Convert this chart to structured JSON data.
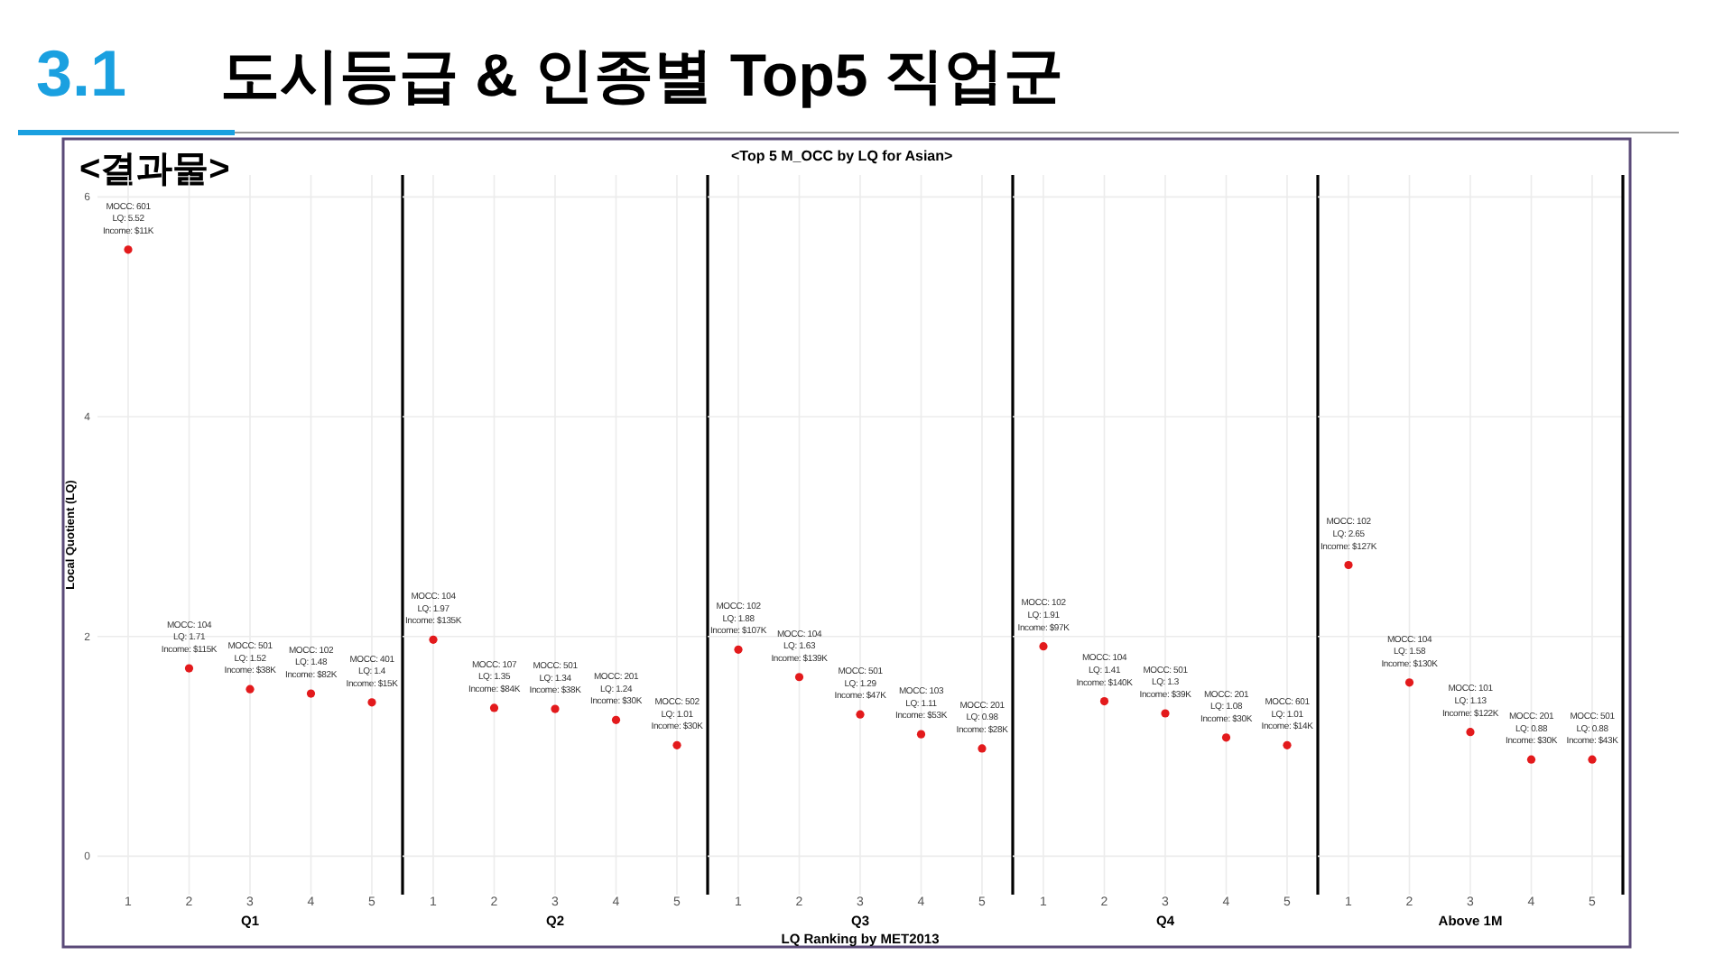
{
  "chart_data": [
    {
      "type": "other",
      "title": "도시등급 & 인종별 Top5 직업군",
      "annotations": [
        "3.1",
        "<결과물>"
      ]
    },
    {
      "type": "scatter",
      "categories": [
        "1",
        "2",
        "3",
        "4",
        "5"
      ],
      "values": [
        5.52,
        1.71,
        1.52,
        1.48,
        1.4
      ],
      "value_labels": [
        "MOCC: 601\nLQ: 5.52\nIncome: $11K",
        "MOCC: 104\nLQ: 1.71\nIncome: $115K",
        "MOCC: 501\nLQ: 1.52\nIncome: $38K",
        "MOCC: 102\nLQ: 1.48\nIncome: $82K",
        "MOCC: 401\nLQ: 1.4\nIncome: $15K"
      ],
      "color": "#e31a1c",
      "marker": "circle",
      "grid": true,
      "xlabel": "Q1",
      "ylabel": "Local Quotient (LQ)",
      "ylim": [
        -0.35,
        6.2
      ],
      "yticks": [
        0,
        2,
        4,
        6
      ]
    },
    {
      "type": "scatter",
      "categories": [
        "1",
        "2",
        "3",
        "4",
        "5"
      ],
      "values": [
        1.97,
        1.35,
        1.34,
        1.24,
        1.01
      ],
      "value_labels": [
        "MOCC: 104\nLQ: 1.97\nIncome: $135K",
        "MOCC: 107\nLQ: 1.35\nIncome: $84K",
        "MOCC: 501\nLQ: 1.34\nIncome: $38K",
        "MOCC: 201\nLQ: 1.24\nIncome: $30K",
        "MOCC: 502\nLQ: 1.01\nIncome: $30K"
      ],
      "color": "#e31a1c",
      "marker": "circle",
      "grid": true,
      "xlabel": "Q2",
      "ylim": [
        -0.35,
        6.2
      ],
      "yticks": [
        0,
        2,
        4,
        6
      ],
      "tick_labels": "x"
    },
    {
      "type": "scatter",
      "title": "<Top 5 M_OCC by LQ for Asian>",
      "categories": [
        "1",
        "2",
        "3",
        "4",
        "5"
      ],
      "values": [
        1.88,
        1.63,
        1.29,
        1.11,
        0.98
      ],
      "value_labels": [
        "MOCC: 102\nLQ: 1.88\nIncome: $107K",
        "MOCC: 104\nLQ: 1.63\nIncome: $139K",
        "MOCC: 501\nLQ: 1.29\nIncome: $47K",
        "MOCC: 103\nLQ: 1.11\nIncome: $53K",
        "MOCC: 201\nLQ: 0.98\nIncome: $28K"
      ],
      "color": "#e31a1c",
      "marker": "circle",
      "grid": true,
      "xlabel": "Q3",
      "annotations": [
        "LQ Ranking by MET2013"
      ],
      "ylim": [
        -0.35,
        6.2
      ],
      "yticks": [
        0,
        2,
        4,
        6
      ],
      "tick_labels": "x"
    },
    {
      "type": "scatter",
      "categories": [
        "1",
        "2",
        "3",
        "4",
        "5"
      ],
      "values": [
        1.91,
        1.41,
        1.3,
        1.08,
        1.01
      ],
      "value_labels": [
        "MOCC: 102\nLQ: 1.91\nIncome: $97K",
        "MOCC: 104\nLQ: 1.41\nIncome: $140K",
        "MOCC: 501\nLQ: 1.3\nIncome: $39K",
        "MOCC: 201\nLQ: 1.08\nIncome: $30K",
        "MOCC: 601\nLQ: 1.01\nIncome: $14K"
      ],
      "color": "#e31a1c",
      "marker": "circle",
      "grid": true,
      "xlabel": "Q4",
      "ylim": [
        -0.35,
        6.2
      ],
      "yticks": [
        0,
        2,
        4,
        6
      ],
      "tick_labels": "x"
    },
    {
      "type": "scatter",
      "categories": [
        "1",
        "2",
        "3",
        "4",
        "5"
      ],
      "values": [
        2.65,
        1.58,
        1.13,
        0.88,
        0.88
      ],
      "value_labels": [
        "MOCC: 102\nLQ: 2.65\nIncome: $127K",
        "MOCC: 104\nLQ: 1.58\nIncome: $130K",
        "MOCC: 101\nLQ: 1.13\nIncome: $122K",
        "MOCC: 201\nLQ: 0.88\nIncome: $30K",
        "MOCC: 501\nLQ: 0.88\nIncome: $43K"
      ],
      "color": "#e31a1c",
      "marker": "circle",
      "grid": true,
      "xlabel": "Above 1M",
      "ylim": [
        -0.35,
        6.2
      ],
      "yticks": [
        0,
        2,
        4,
        6
      ],
      "tick_labels": "x"
    }
  ]
}
